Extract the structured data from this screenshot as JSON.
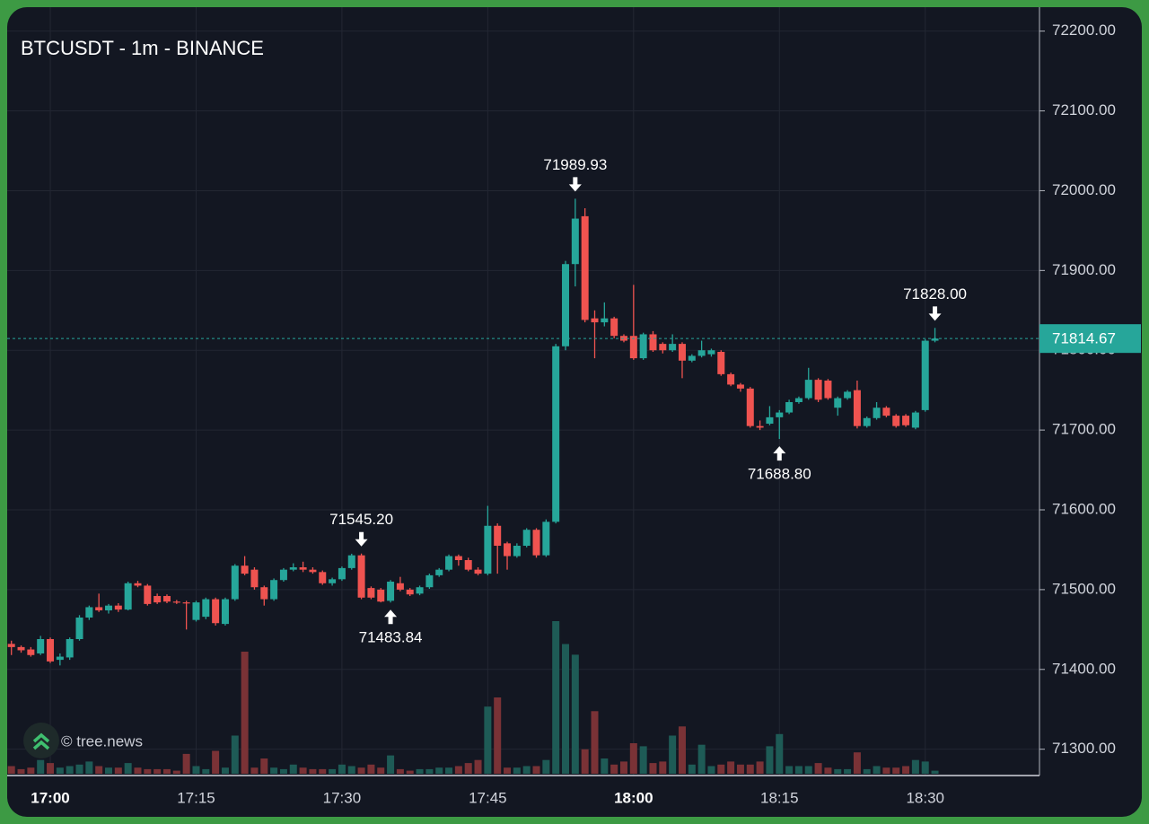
{
  "chart_data": {
    "type": "candlestick",
    "title": "BTCUSDT - 1m - BINANCE",
    "watermark": "© tree.news",
    "categories": [
      null,
      null,
      null,
      null,
      "17:00",
      null,
      null,
      null,
      null,
      null,
      null,
      null,
      null,
      null,
      null,
      null,
      null,
      null,
      null,
      "17:15",
      null,
      null,
      null,
      null,
      null,
      null,
      null,
      null,
      null,
      null,
      null,
      null,
      null,
      null,
      "17:30",
      null,
      null,
      null,
      null,
      null,
      null,
      null,
      null,
      null,
      null,
      null,
      null,
      null,
      null,
      "17:45",
      null,
      null,
      null,
      null,
      null,
      null,
      null,
      null,
      null,
      null,
      null,
      null,
      null,
      null,
      "18:00",
      null,
      null,
      null,
      null,
      null,
      null,
      null,
      null,
      null,
      null,
      null,
      null,
      null,
      null,
      "18:15",
      null,
      null,
      null,
      null,
      null,
      null,
      null,
      null,
      null,
      null,
      null,
      null,
      null,
      null,
      "18:30",
      null
    ],
    "open": [
      71432,
      71428,
      71425,
      71420,
      71438,
      71412,
      71415,
      71438,
      71465,
      71478,
      71474,
      71480,
      71475,
      71508,
      71505,
      71492,
      71492,
      71485,
      71484,
      71462,
      71466,
      71488,
      71457,
      71488,
      71530,
      71525,
      71503,
      71488,
      71512,
      71525,
      71528,
      71525,
      71522,
      71508,
      71513,
      71527,
      71543,
      71502,
      71500,
      71486,
      71508,
      71500,
      71495,
      71503,
      71518,
      71525,
      71542,
      71537,
      71525,
      71520,
      71580,
      71558,
      71542,
      71555,
      71575,
      71543,
      71585,
      71805,
      71908,
      71968,
      71840,
      71835,
      71840,
      71818,
      71818,
      71790,
      71820,
      71808,
      71800,
      71808,
      71787,
      71793,
      71795,
      71798,
      71770,
      71757,
      71752,
      71705,
      71708,
      71716,
      71722,
      71735,
      71740,
      71763,
      71762,
      71728,
      71740,
      71750,
      71705,
      71715,
      71728,
      71718,
      71718,
      71703,
      71725,
      71812
    ],
    "high": [
      71436,
      71430,
      71428,
      71442,
      71440,
      71420,
      71440,
      71468,
      71480,
      71495,
      71482,
      71483,
      71510,
      71511,
      71507,
      71495,
      71494,
      71487,
      71486,
      71486,
      71490,
      71490,
      71490,
      71532,
      71542,
      71528,
      71505,
      71514,
      71527,
      71533,
      71535,
      71528,
      71524,
      71515,
      71529,
      71545,
      71545.2,
      71504,
      71502,
      71512,
      71516,
      71502,
      71505,
      71520,
      71527,
      71544,
      71544,
      71540,
      71528,
      71605,
      71583,
      71560,
      71558,
      71577,
      71577,
      71588,
      71808,
      71912,
      71989.93,
      71978,
      71850,
      71860,
      71842,
      71820,
      71882,
      71822,
      71824,
      71810,
      71820,
      71810,
      71795,
      71812,
      71802,
      71800,
      71772,
      71759,
      71754,
      71712,
      71730,
      71725,
      71738,
      71742,
      71778,
      71765,
      71764,
      71742,
      71750,
      71762,
      71717,
      71735,
      71730,
      71720,
      71720,
      71724,
      71814,
      71828
    ],
    "low": [
      71418,
      71421,
      71416,
      71418,
      71408,
      71405,
      71412,
      71436,
      71462,
      71472,
      71470,
      71472,
      71474,
      71503,
      71480,
      71482,
      71483,
      71482,
      71450,
      71460,
      71463,
      71455,
      71455,
      71486,
      71518,
      71500,
      71480,
      71486,
      71510,
      71523,
      71522,
      71520,
      71506,
      71505,
      71511,
      71525,
      71488,
      71488,
      71484,
      71483.84,
      71498,
      71492,
      71493,
      71501,
      71516,
      71523,
      71530,
      71523,
      71518,
      71518,
      71520,
      71525,
      71540,
      71553,
      71540,
      71541,
      71583,
      71800,
      71880,
      71835,
      71790,
      71830,
      71815,
      71810,
      71788,
      71788,
      71798,
      71796,
      71798,
      71765,
      71785,
      71791,
      71792,
      71768,
      71755,
      71748,
      71703,
      71700,
      71706,
      71688.8,
      71720,
      71733,
      71738,
      71735,
      71738,
      71718,
      71738,
      71702,
      71703,
      71713,
      71716,
      71703,
      71704,
      71701,
      71723,
      71810
    ],
    "close": [
      71428,
      71424,
      71418,
      71438,
      71410,
      71416,
      71438,
      71465,
      71478,
      71474,
      71480,
      71475,
      71508,
      71505,
      71482,
      71484,
      71485,
      71484,
      71483,
      71484,
      71488,
      71458,
      71488,
      71530,
      71520,
      71503,
      71488,
      71512,
      71525,
      71528,
      71525,
      71522,
      71508,
      71513,
      71527,
      71543,
      71490,
      71490,
      71485,
      71510,
      71500,
      71494,
      71503,
      71518,
      71525,
      71542,
      71537,
      71525,
      71520,
      71580,
      71555,
      71542,
      71555,
      71575,
      71543,
      71585,
      71805,
      71908,
      71965,
      71838,
      71835,
      71840,
      71818,
      71812,
      71790,
      71820,
      71800,
      71800,
      71808,
      71787,
      71793,
      71800,
      71800,
      71770,
      71757,
      71752,
      71705,
      71703,
      71716,
      71722,
      71735,
      71740,
      71763,
      71738,
      71740,
      71740,
      71748,
      71705,
      71715,
      71728,
      71718,
      71705,
      71706,
      71722,
      71812,
      71814.67
    ],
    "volume": [
      5,
      3,
      4,
      9,
      7,
      4,
      5,
      6,
      8,
      5,
      4,
      4,
      7,
      4,
      3,
      3,
      3,
      2,
      13,
      5,
      3,
      15,
      4,
      25,
      80,
      4,
      10,
      4,
      3,
      6,
      4,
      3,
      3,
      3,
      6,
      5,
      4,
      6,
      4,
      12,
      3,
      2,
      3,
      3,
      4,
      4,
      5,
      7,
      9,
      44,
      50,
      4,
      4,
      5,
      5,
      9,
      100,
      85,
      78,
      16,
      41,
      10,
      6,
      8,
      20,
      18,
      7,
      8,
      25,
      31,
      6,
      19,
      5,
      6,
      8,
      6,
      6,
      8,
      18,
      26,
      5,
      5,
      5,
      7,
      4,
      3,
      3,
      14,
      3,
      5,
      4,
      4,
      5,
      9,
      8,
      2
    ],
    "up_color": "#26a69a",
    "down_color": "#ef5350",
    "up_volume_color": "#1e5b56",
    "down_volume_color": "#7a3236",
    "ylim": [
      71267,
      72230
    ],
    "yticks": [
      {
        "value": 71300,
        "label": "71300.00"
      },
      {
        "value": 71400,
        "label": "71400.00"
      },
      {
        "value": 71500,
        "label": "71500.00"
      },
      {
        "value": 71600,
        "label": "71600.00"
      },
      {
        "value": 71700,
        "label": "71700.00"
      },
      {
        "value": 71800,
        "label": "71800.00"
      },
      {
        "value": 71900,
        "label": "71900.00"
      },
      {
        "value": 72000,
        "label": "72000.00"
      },
      {
        "value": 72100,
        "label": "72100.00"
      },
      {
        "value": 72200,
        "label": "72200.00"
      }
    ],
    "grid": true,
    "last_price": 71814.67,
    "annotations": [
      {
        "index": 36,
        "value": 71545.2,
        "label": "71545.20",
        "position": "above"
      },
      {
        "index": 39,
        "value": 71483.84,
        "position": "below"
      },
      {
        "index": 58,
        "value": 71989.93,
        "position": "above"
      },
      {
        "index": 79,
        "value": 71688.8,
        "label": "71688.80",
        "position": "below"
      },
      {
        "index": 95,
        "value": 71828,
        "label": "71828.00",
        "position": "above"
      }
    ]
  }
}
